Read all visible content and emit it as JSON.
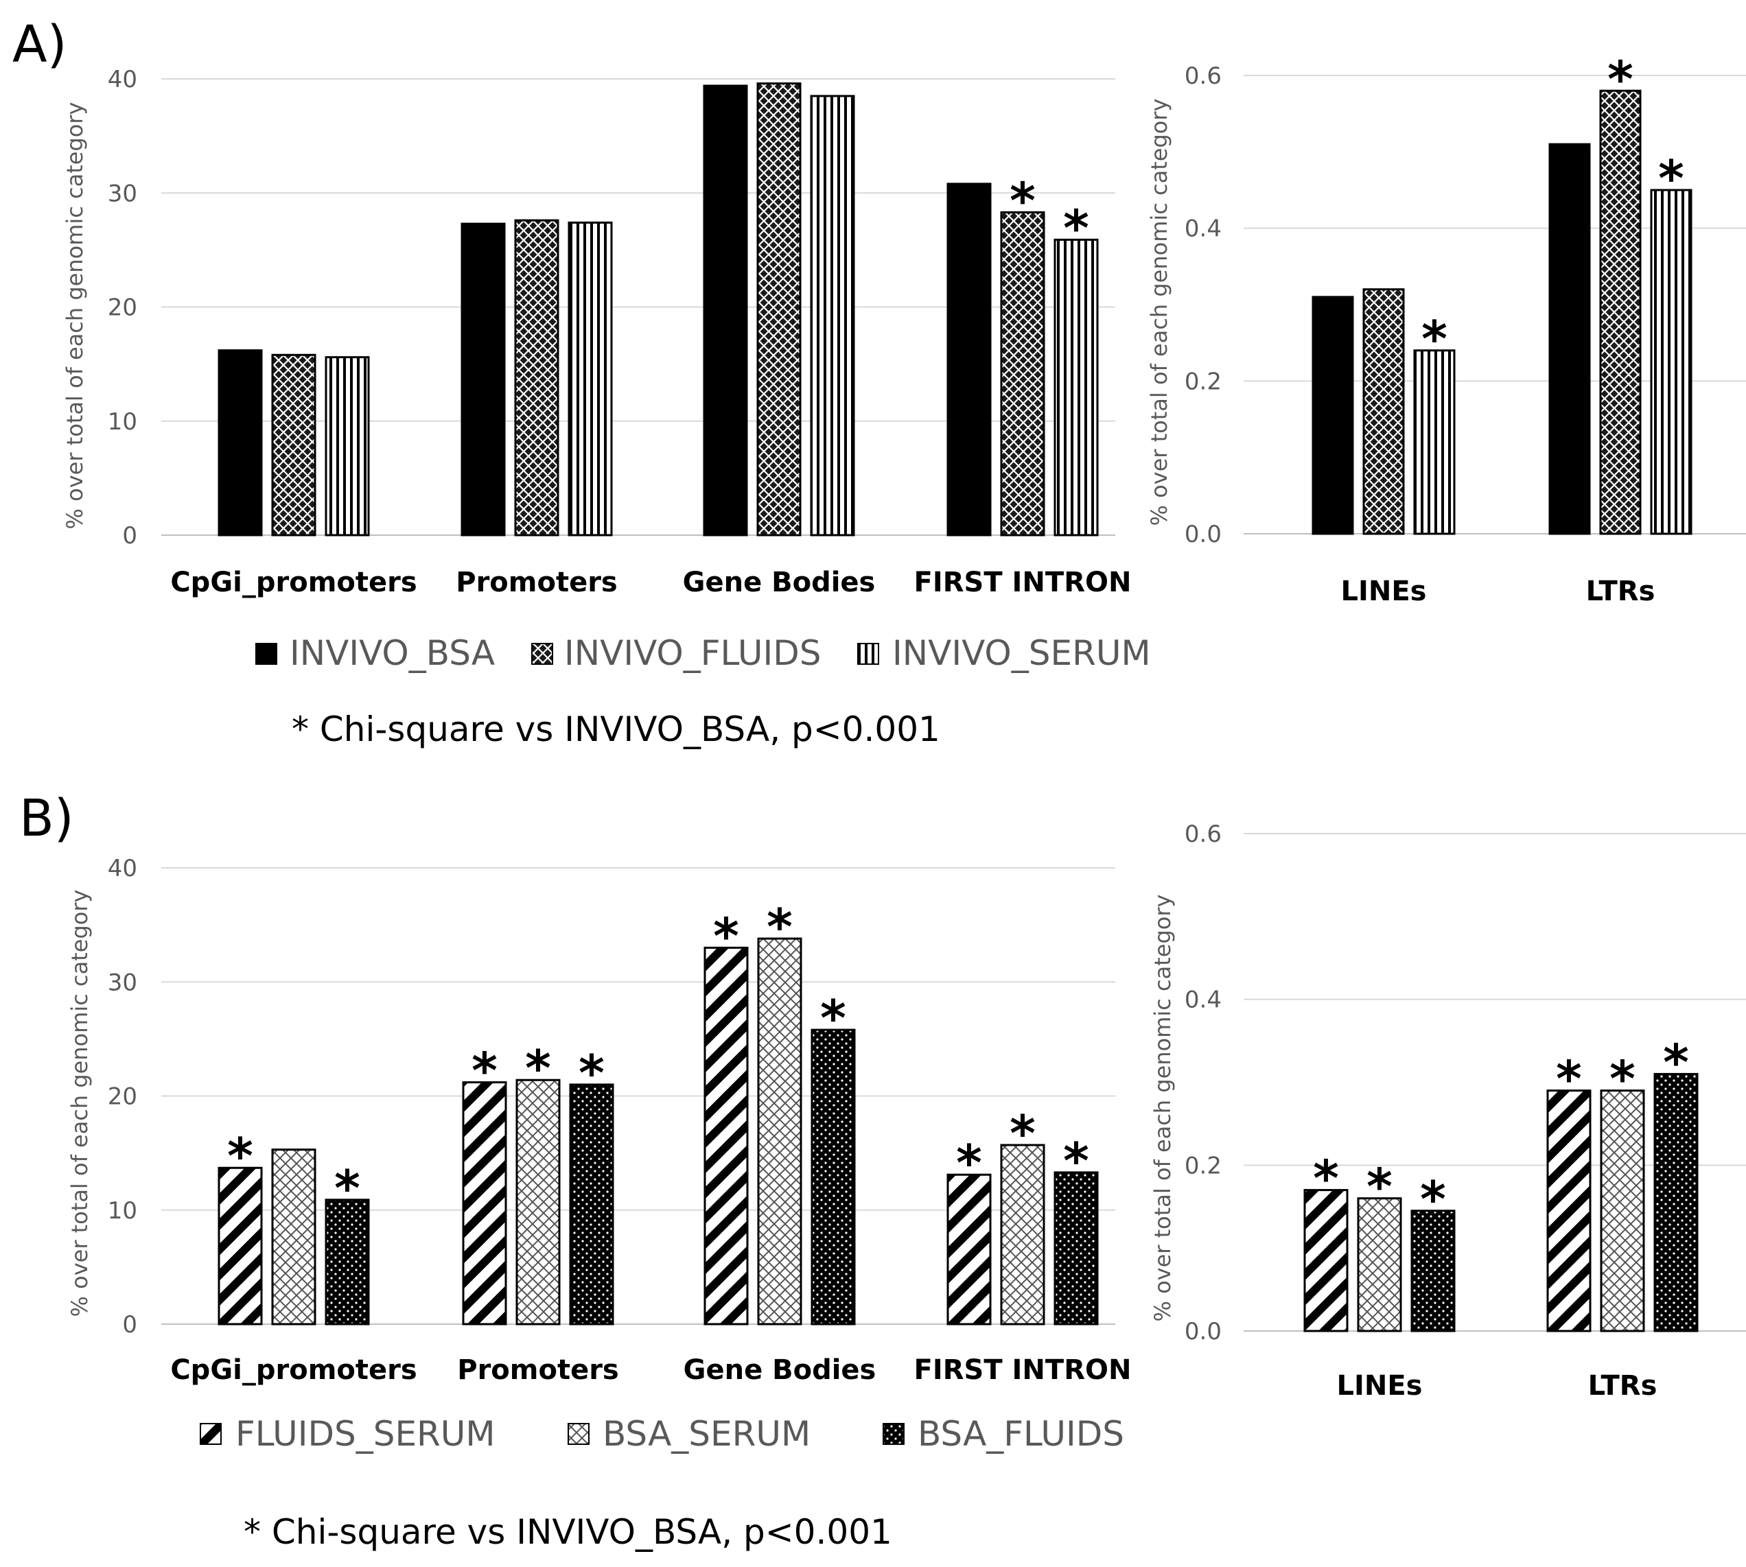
{
  "chart_data": [
    {
      "id": "A-left",
      "panel": "A)",
      "type": "bar",
      "ylabel": "% over total of each genomic category",
      "ylim": [
        0,
        40
      ],
      "yticks": [
        "0",
        "10",
        "20",
        "30",
        "40"
      ],
      "grid": true,
      "categories": [
        "CpGi_promoters",
        "Promoters",
        "Gene Bodies",
        "FIRST INTRON"
      ],
      "series": [
        {
          "name": "INVIVO_BSA",
          "pattern": "solid",
          "values": [
            16.2,
            27.3,
            39.4,
            30.8
          ],
          "sig": [
            false,
            false,
            false,
            false
          ]
        },
        {
          "name": "INVIVO_FLUIDS",
          "pattern": "dense",
          "values": [
            15.8,
            27.6,
            39.6,
            28.3
          ],
          "sig": [
            false,
            false,
            false,
            true
          ]
        },
        {
          "name": "INVIVO_SERUM",
          "pattern": "vlines",
          "values": [
            15.6,
            27.4,
            38.5,
            25.9
          ],
          "sig": [
            false,
            false,
            false,
            true
          ]
        }
      ]
    },
    {
      "id": "A-right",
      "type": "bar",
      "ylabel": "% over total of each genomic category",
      "ylim": [
        0,
        0.6
      ],
      "yticks": [
        "0.0",
        "0.2",
        "0.4",
        "0.6"
      ],
      "grid": true,
      "categories": [
        "LINEs",
        "LTRs"
      ],
      "series": [
        {
          "name": "INVIVO_BSA",
          "pattern": "solid",
          "values": [
            0.31,
            0.51
          ],
          "sig": [
            false,
            false
          ]
        },
        {
          "name": "INVIVO_FLUIDS",
          "pattern": "dense",
          "values": [
            0.32,
            0.58
          ],
          "sig": [
            false,
            true
          ]
        },
        {
          "name": "INVIVO_SERUM",
          "pattern": "vlines",
          "values": [
            0.24,
            0.45
          ],
          "sig": [
            true,
            true
          ]
        }
      ]
    },
    {
      "id": "B-left",
      "panel": "B)",
      "type": "bar",
      "ylabel": "% over total of each genomic category",
      "ylim": [
        0,
        40
      ],
      "yticks": [
        "0",
        "10",
        "20",
        "30",
        "40"
      ],
      "grid": true,
      "categories": [
        "CpGi_promoters",
        "Promoters",
        "Gene Bodies",
        "FIRST INTRON"
      ],
      "series": [
        {
          "name": "FLUIDS_SERUM",
          "pattern": "diag",
          "values": [
            13.7,
            21.2,
            33.0,
            13.1
          ],
          "sig": [
            true,
            true,
            true,
            true
          ]
        },
        {
          "name": "BSA_SERUM",
          "pattern": "cross",
          "values": [
            15.3,
            21.4,
            33.8,
            15.7
          ],
          "sig": [
            false,
            true,
            true,
            true
          ]
        },
        {
          "name": "BSA_FLUIDS",
          "pattern": "dots",
          "values": [
            10.9,
            21.0,
            25.8,
            13.3
          ],
          "sig": [
            true,
            true,
            true,
            true
          ]
        }
      ]
    },
    {
      "id": "B-right",
      "type": "bar",
      "ylabel": "% over total of each genomic category",
      "ylim": [
        0,
        0.6
      ],
      "yticks": [
        "0.0",
        "0.2",
        "0.4",
        "0.6"
      ],
      "grid": true,
      "categories": [
        "LINEs",
        "LTRs"
      ],
      "series": [
        {
          "name": "FLUIDS_SERUM",
          "pattern": "diag",
          "values": [
            0.17,
            0.29
          ],
          "sig": [
            true,
            true
          ]
        },
        {
          "name": "BSA_SERUM",
          "pattern": "cross",
          "values": [
            0.16,
            0.29
          ],
          "sig": [
            true,
            true
          ]
        },
        {
          "name": "BSA_FLUIDS",
          "pattern": "dots",
          "values": [
            0.145,
            0.31
          ],
          "sig": [
            true,
            true
          ]
        }
      ]
    }
  ],
  "legend_a": [
    "INVIVO_BSA",
    "INVIVO_FLUIDS",
    "INVIVO_SERUM"
  ],
  "legend_b": [
    "FLUIDS_SERUM",
    "BSA_SERUM",
    "BSA_FLUIDS"
  ],
  "note_a": "* Chi-square vs INVIVO_BSA, p<0.001",
  "note_b": "* Chi-square vs INVIVO_BSA, p<0.001",
  "sig_marker": "*"
}
